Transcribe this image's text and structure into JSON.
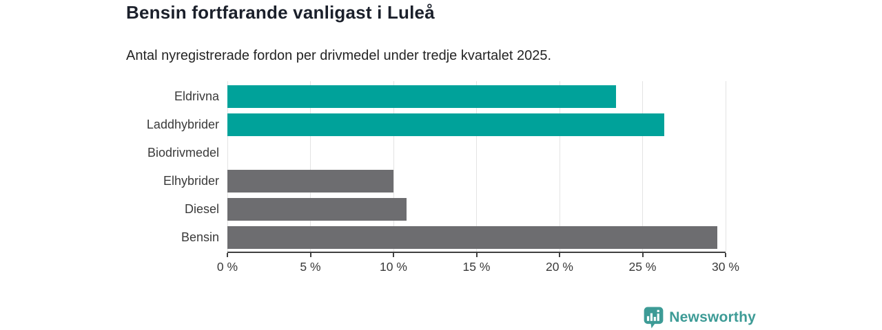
{
  "header": {
    "title": "Bensin fortfarande vanligast i Luleå",
    "subtitle": "Antal nyregistrerade fordon per drivmedel under tredje kvartalet 2025."
  },
  "chart_data": {
    "type": "bar",
    "orientation": "horizontal",
    "title": "Bensin fortfarande vanligast i Luleå",
    "subtitle": "Antal nyregistrerade fordon per drivmedel under tredje kvartalet 2025.",
    "categories": [
      "Eldrivna",
      "Laddhybrider",
      "Biodrivmedel",
      "Elhybrider",
      "Diesel",
      "Bensin"
    ],
    "values": [
      23.4,
      26.3,
      0,
      10.0,
      10.8,
      29.5
    ],
    "unit": "%",
    "xlim": [
      0,
      30
    ],
    "xticks": [
      0,
      5,
      10,
      15,
      20,
      25,
      30
    ],
    "xtick_labels": [
      "0 %",
      "5 %",
      "10 %",
      "15 %",
      "20 %",
      "25 %",
      "30 %"
    ],
    "bar_colors": [
      "#00a29a",
      "#00a29a",
      "#00a29a",
      "#6d6d70",
      "#6d6d70",
      "#6d6d70"
    ],
    "grid": true,
    "legend": null
  },
  "colors": {
    "accent_teal": "#00a29a",
    "neutral_gray": "#6d6d70",
    "logo_teal": "#3d9b96",
    "axis": "#3f3f3f",
    "gridline": "#e3e3e3"
  },
  "footer": {
    "brand": "Newsworthy"
  }
}
